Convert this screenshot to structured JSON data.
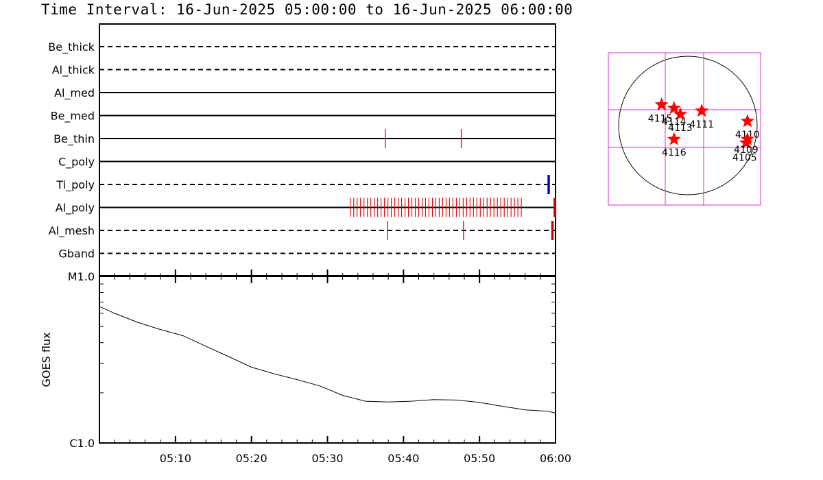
{
  "title": "Time Interval: 16-Jun-2025 05:00:00 to 16-Jun-2025 06:00:00",
  "chart_data": [
    {
      "type": "timeline",
      "x_range": [
        "05:00",
        "06:00"
      ],
      "x_ticks": [
        "05:10",
        "05:20",
        "05:30",
        "05:40",
        "05:50",
        "06:00"
      ],
      "rows": [
        {
          "name": "Be_thick",
          "style": "dashed",
          "marks": []
        },
        {
          "name": "Al_thick",
          "style": "dashed",
          "marks": []
        },
        {
          "name": "Al_med",
          "style": "solid",
          "marks": []
        },
        {
          "name": "Be_med",
          "style": "solid",
          "marks": []
        },
        {
          "name": "Be_thin",
          "style": "solid",
          "marks": [
            {
              "t": 37.6,
              "color": "#dd0000"
            },
            {
              "t": 47.6,
              "color": "#dd0000"
            }
          ]
        },
        {
          "name": "C_poly",
          "style": "solid",
          "marks": []
        },
        {
          "name": "Ti_poly",
          "style": "dashed",
          "marks": [
            {
              "t": 59.1,
              "color": "#0000dd",
              "bold": true
            }
          ]
        },
        {
          "name": "Al_poly",
          "style": "solid",
          "marks": [],
          "cadence": {
            "start": 33.0,
            "end": 55.6,
            "step": 0.45,
            "color": "#dd0000"
          },
          "extra_marks": [
            {
              "t": 59.9,
              "color": "#dd0000",
              "bold": true
            }
          ]
        },
        {
          "name": "Al_mesh",
          "style": "dashed",
          "marks": [
            {
              "t": 37.9,
              "color": "#dd0000"
            },
            {
              "t": 47.9,
              "color": "#dd0000"
            },
            {
              "t": 59.6,
              "color": "#dd0000",
              "bold": true
            }
          ]
        },
        {
          "name": "Gband",
          "style": "dashed",
          "marks": []
        }
      ]
    },
    {
      "type": "line",
      "ylabel": "GOES flux",
      "y_scale": "log",
      "y_ticks": [
        "M1.0",
        "C1.0"
      ],
      "x_range": [
        "05:00",
        "06:00"
      ],
      "x_minutes": [
        0,
        2,
        5,
        8,
        11,
        14,
        17,
        20,
        23,
        26,
        29,
        32,
        35,
        38,
        41,
        44,
        47,
        50,
        53,
        56,
        59,
        60
      ],
      "flux": [
        6.6e-06,
        6e-06,
        5.3e-06,
        4.8e-06,
        4.4e-06,
        3.8e-06,
        3.3e-06,
        2.85e-06,
        2.6e-06,
        2.4e-06,
        2.2e-06,
        1.93e-06,
        1.78e-06,
        1.76e-06,
        1.78e-06,
        1.82e-06,
        1.81e-06,
        1.75e-06,
        1.66e-06,
        1.58e-06,
        1.55e-06,
        1.51e-06
      ]
    },
    {
      "type": "scatter",
      "description_label": "",
      "points": [
        {
          "label": "4115",
          "x": -0.38,
          "y": 0.3
        },
        {
          "label": "4114",
          "x": -0.2,
          "y": 0.25
        },
        {
          "label": "4113",
          "x": -0.11,
          "y": 0.16
        },
        {
          "label": "4111",
          "x": 0.2,
          "y": 0.21
        },
        {
          "label": "4110",
          "x": 0.86,
          "y": 0.06
        },
        {
          "label": "4116",
          "x": -0.2,
          "y": -0.2
        },
        {
          "label": "4105",
          "x": 0.84,
          "y": -0.25
        },
        {
          "label": "4109",
          "x": 0.86,
          "y": -0.2
        }
      ]
    }
  ]
}
